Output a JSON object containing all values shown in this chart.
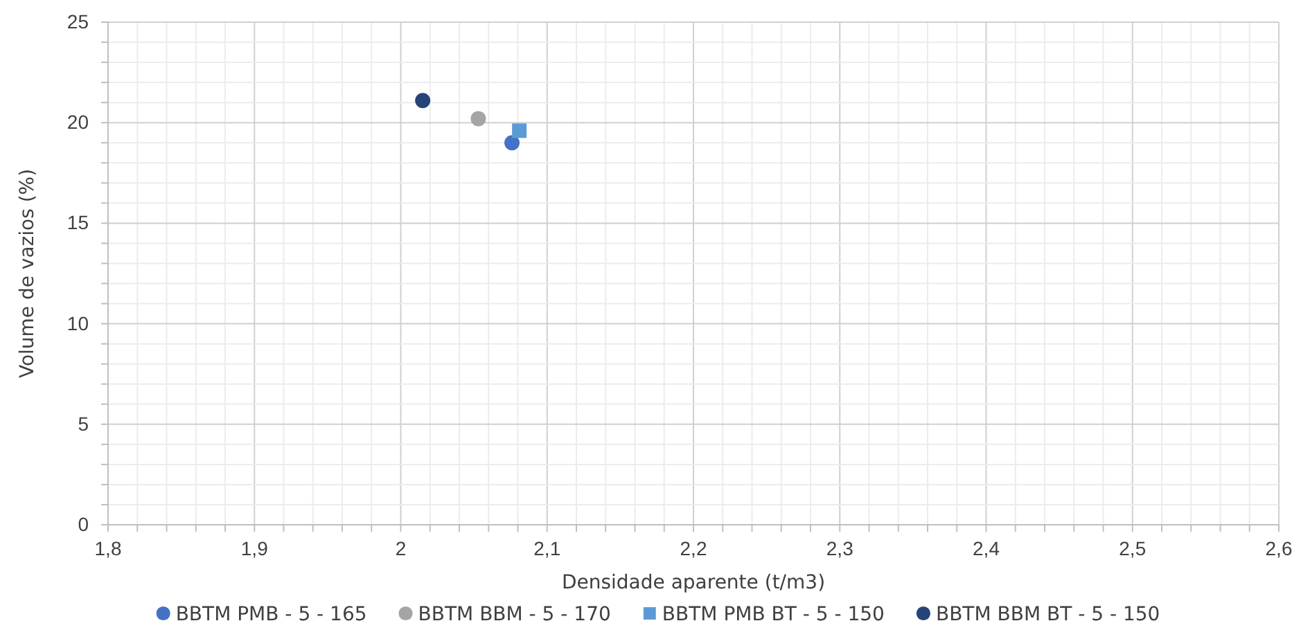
{
  "chart_data": {
    "type": "scatter",
    "xlabel": "Densidade aparente (t/m3)",
    "ylabel": "Volume de vazios (%)",
    "xlim": [
      1.8,
      2.6
    ],
    "ylim": [
      0,
      25
    ],
    "xticks": [
      {
        "value": 1.8,
        "label": "1,8"
      },
      {
        "value": 1.9,
        "label": "1,9"
      },
      2,
      {
        "value": 2.1,
        "label": "2,1"
      },
      {
        "value": 2.2,
        "label": "2,2"
      },
      {
        "value": 2.3,
        "label": "2,3"
      },
      {
        "value": 2.4,
        "label": "2,4"
      },
      {
        "value": 2.5,
        "label": "2,5"
      },
      {
        "value": 2.6,
        "label": "2,6"
      }
    ],
    "yticks": [
      0,
      5,
      10,
      15,
      20,
      25
    ],
    "grid": true,
    "legend": "bottom",
    "series": [
      {
        "name": "BBTM PMB - 5 - 165",
        "color": "#4472c4",
        "marker": "circle",
        "x": [
          2.076
        ],
        "values": [
          19.0
        ]
      },
      {
        "name": "BBTM BBM - 5 - 170",
        "color": "#a5a5a5",
        "marker": "circle",
        "x": [
          2.053
        ],
        "values": [
          20.2
        ]
      },
      {
        "name": "BBTM PMB BT - 5 - 150",
        "color": "#5b9bd5",
        "marker": "square",
        "x": [
          2.081
        ],
        "values": [
          19.6
        ]
      },
      {
        "name": "BBTM BBM BT - 5 - 150",
        "color": "#264478",
        "marker": "circle",
        "x": [
          2.015
        ],
        "values": [
          21.1
        ]
      }
    ]
  }
}
